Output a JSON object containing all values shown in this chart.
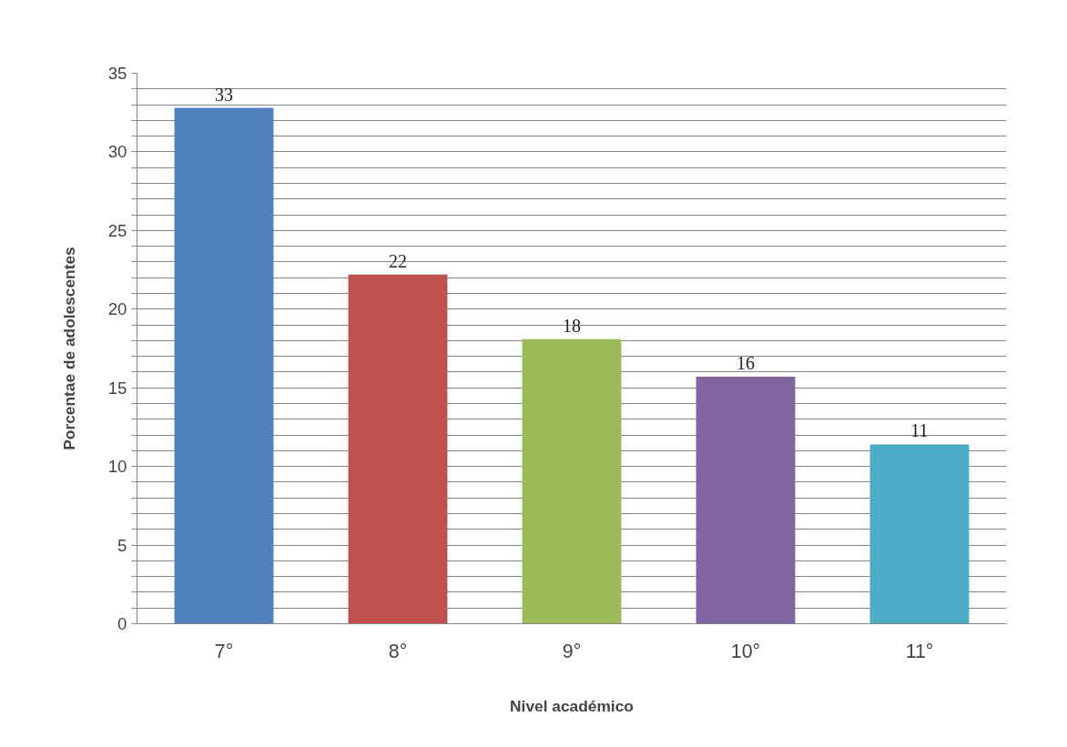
{
  "chart_data": {
    "type": "bar",
    "xlabel": "Nivel académico",
    "ylabel": "Porcentae de adolescentes",
    "categories": [
      "7°",
      "8°",
      "9°",
      "10°",
      "11°"
    ],
    "values": [
      32.8,
      22.2,
      18.1,
      15.7,
      11.4
    ],
    "value_labels": [
      "33",
      "22",
      "18",
      "16",
      "11"
    ],
    "colors": [
      "#4f81bd",
      "#c0504d",
      "#9bbb59",
      "#8064a2",
      "#4bacc6"
    ],
    "ylim": [
      0,
      35
    ],
    "yticks": [
      0,
      {
        "value": 1,
        "label": null
      },
      {
        "value": 2,
        "label": null
      },
      {
        "value": 3,
        "label": null
      },
      {
        "value": 4,
        "label": null
      },
      5,
      {
        "value": 6,
        "label": null
      },
      {
        "value": 7,
        "label": null
      },
      {
        "value": 8,
        "label": null
      },
      {
        "value": 9,
        "label": null
      },
      10,
      {
        "value": 11,
        "label": null
      },
      {
        "value": 12,
        "label": null
      },
      {
        "value": 13,
        "label": null
      },
      {
        "value": 14,
        "label": null
      },
      15,
      {
        "value": 16,
        "label": null
      },
      {
        "value": 17,
        "label": null
      },
      {
        "value": 18,
        "label": null
      },
      {
        "value": 19,
        "label": null
      },
      20,
      {
        "value": 21,
        "label": null
      },
      {
        "value": 22,
        "label": null
      },
      {
        "value": 23,
        "label": null
      },
      {
        "value": 24,
        "label": null
      },
      25,
      {
        "value": 26,
        "label": null
      },
      {
        "value": 27,
        "label": null
      },
      {
        "value": 28,
        "label": null
      },
      {
        "value": 29,
        "label": null
      },
      30,
      {
        "value": 31,
        "label": null
      },
      {
        "value": 32,
        "label": null
      },
      {
        "value": 33,
        "label": null
      },
      {
        "value": 34,
        "label": null
      },
      35
    ],
    "grid": "y"
  }
}
